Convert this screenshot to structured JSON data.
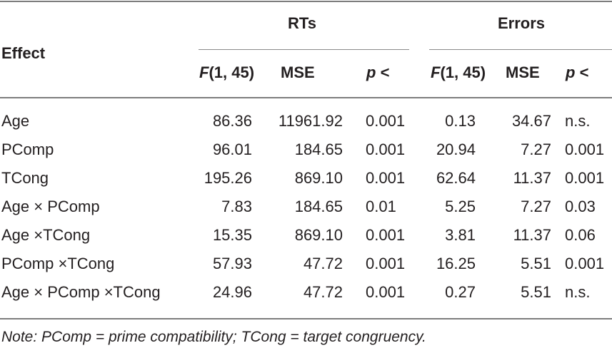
{
  "header": {
    "effect": "Effect",
    "group_rts": "RTs",
    "group_errors": "Errors",
    "columns": [
      {
        "italic_part": "F",
        "rest": "(1, 45)"
      },
      {
        "italic_part": "",
        "rest": "MSE"
      },
      {
        "italic_part": "p",
        "rest": " <"
      },
      {
        "italic_part": "F",
        "rest": "(1, 45)"
      },
      {
        "italic_part": "",
        "rest": "MSE"
      },
      {
        "italic_part": "p",
        "rest": " <"
      }
    ]
  },
  "rows": [
    {
      "effect": "Age",
      "cells": [
        "86.36",
        "11961.92",
        "0.001",
        "0.13",
        "34.67",
        "n.s."
      ]
    },
    {
      "effect": "PComp",
      "cells": [
        "96.01",
        "184.65",
        "0.001",
        "20.94",
        "7.27",
        "0.001"
      ]
    },
    {
      "effect": "TCong",
      "cells": [
        "195.26",
        "869.10",
        "0.001",
        "62.64",
        "11.37",
        "0.001"
      ]
    },
    {
      "effect": "Age × PComp",
      "cells": [
        "7.83",
        "184.65",
        "0.01",
        "5.25",
        "7.27",
        "0.03"
      ]
    },
    {
      "effect": "Age ×TCong",
      "cells": [
        "15.35",
        "869.10",
        "0.001",
        "3.81",
        "11.37",
        "0.06"
      ]
    },
    {
      "effect": "PComp ×TCong",
      "cells": [
        "57.93",
        "47.72",
        "0.001",
        "16.25",
        "5.51",
        "0.001"
      ]
    },
    {
      "effect": "Age × PComp ×TCong",
      "cells": [
        "24.96",
        "47.72",
        "0.001",
        "0.27",
        "5.51",
        "n.s."
      ]
    }
  ],
  "note": "Note: PComp = prime compatibility; TCong = target congruency."
}
